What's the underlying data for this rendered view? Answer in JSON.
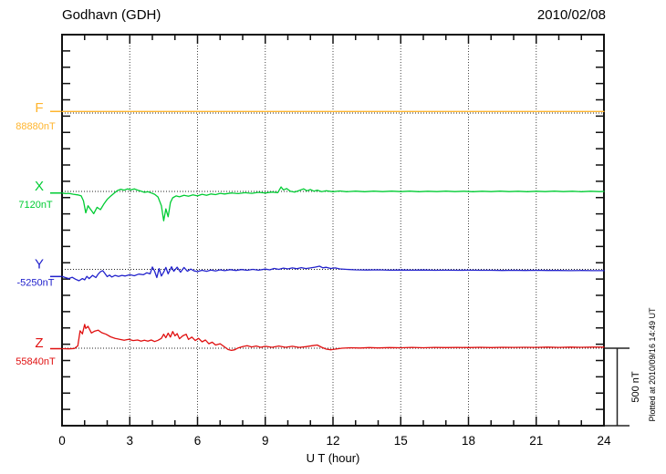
{
  "header": {
    "title": "Godhavn (GDH)",
    "date": "2010/02/08"
  },
  "chart_data": {
    "type": "line",
    "title": "Godhavn (GDH)",
    "date": "2010/02/08",
    "xlabel": "U T (hour)",
    "x_range": [
      0,
      24
    ],
    "x_major_ticks": [
      0,
      3,
      6,
      9,
      12,
      15,
      18,
      21,
      24
    ],
    "x_major_labels": [
      "0",
      "3",
      "6",
      "9",
      "12",
      "15",
      "18",
      "21",
      "24"
    ],
    "x_minor_step_hours": 1,
    "y_tick_step_nT": 100,
    "grid": {
      "vertical_dotted_at_hours": [
        3,
        6,
        9,
        12,
        15,
        18,
        21
      ],
      "horizontal_dotted": "one dotted baseline per channel"
    },
    "scale_bar": {
      "label": "500 nT",
      "value_nT": 500
    },
    "plotted_note": "Plotted at 2010/09/16 14:49 UT",
    "units_note": "points are [hour, deviation in nT from channel baseline]",
    "series": [
      {
        "name": "F",
        "baseline_label": "88880nT",
        "baseline_nT": 88880,
        "color": "#FFB52E",
        "points": [
          [
            0,
            10
          ],
          [
            24,
            10
          ]
        ]
      },
      {
        "name": "X",
        "baseline_label": "7120nT",
        "baseline_nT": 7120,
        "color": "#00CC33",
        "points": [
          [
            0,
            -10
          ],
          [
            0.15,
            -14
          ],
          [
            0.3,
            -12
          ],
          [
            0.5,
            -18
          ],
          [
            0.7,
            -22
          ],
          [
            0.85,
            -28
          ],
          [
            0.95,
            -60
          ],
          [
            1.05,
            -135
          ],
          [
            1.15,
            -90
          ],
          [
            1.25,
            -110
          ],
          [
            1.4,
            -140
          ],
          [
            1.55,
            -100
          ],
          [
            1.7,
            -115
          ],
          [
            1.85,
            -80
          ],
          [
            2,
            -50
          ],
          [
            2.15,
            -30
          ],
          [
            2.3,
            -12
          ],
          [
            2.45,
            5
          ],
          [
            2.6,
            14
          ],
          [
            2.75,
            8
          ],
          [
            2.9,
            16
          ],
          [
            3.05,
            10
          ],
          [
            3.2,
            16
          ],
          [
            3.35,
            8
          ],
          [
            3.5,
            2
          ],
          [
            3.65,
            -6
          ],
          [
            3.8,
            -2
          ],
          [
            3.95,
            -10
          ],
          [
            4.1,
            -18
          ],
          [
            4.25,
            -35
          ],
          [
            4.4,
            -90
          ],
          [
            4.5,
            -185
          ],
          [
            4.6,
            -110
          ],
          [
            4.7,
            -160
          ],
          [
            4.8,
            -70
          ],
          [
            4.9,
            -40
          ],
          [
            5.05,
            -28
          ],
          [
            5.2,
            -34
          ],
          [
            5.4,
            -24
          ],
          [
            5.6,
            -30
          ],
          [
            5.8,
            -22
          ],
          [
            6,
            -28
          ],
          [
            6.2,
            -18
          ],
          [
            6.4,
            -24
          ],
          [
            6.6,
            -16
          ],
          [
            6.8,
            -20
          ],
          [
            7,
            -12
          ],
          [
            7.2,
            -16
          ],
          [
            7.5,
            -10
          ],
          [
            7.8,
            -14
          ],
          [
            8.1,
            -8
          ],
          [
            8.4,
            -12
          ],
          [
            8.7,
            -6
          ],
          [
            9,
            -10
          ],
          [
            9.3,
            -4
          ],
          [
            9.55,
            -8
          ],
          [
            9.7,
            28
          ],
          [
            9.8,
            10
          ],
          [
            9.95,
            18
          ],
          [
            10.1,
            2
          ],
          [
            10.3,
            -4
          ],
          [
            10.5,
            6
          ],
          [
            10.7,
            16
          ],
          [
            10.85,
            4
          ],
          [
            11,
            12
          ],
          [
            11.15,
            2
          ],
          [
            11.3,
            8
          ],
          [
            11.5,
            -2
          ],
          [
            11.7,
            4
          ],
          [
            12,
            -2
          ],
          [
            12.3,
            3
          ],
          [
            12.6,
            -2
          ],
          [
            13,
            2
          ],
          [
            13.4,
            -2
          ],
          [
            13.8,
            2
          ],
          [
            14.2,
            -1
          ],
          [
            14.6,
            2
          ],
          [
            15,
            -1
          ],
          [
            15.4,
            2
          ],
          [
            15.8,
            -2
          ],
          [
            16.2,
            1
          ],
          [
            16.6,
            -1
          ],
          [
            17,
            2
          ],
          [
            17.4,
            -1
          ],
          [
            17.8,
            1
          ],
          [
            18.2,
            -2
          ],
          [
            18.6,
            1
          ],
          [
            19,
            -1
          ],
          [
            19.4,
            2
          ],
          [
            19.8,
            -1
          ],
          [
            20.2,
            1
          ],
          [
            20.6,
            -2
          ],
          [
            21,
            1
          ],
          [
            21.4,
            -1
          ],
          [
            21.8,
            2
          ],
          [
            22.2,
            -1
          ],
          [
            22.6,
            1
          ],
          [
            23,
            -2
          ],
          [
            23.4,
            1
          ],
          [
            23.8,
            -1
          ],
          [
            24,
            0
          ]
        ]
      },
      {
        "name": "Y",
        "baseline_label": "-5250nT",
        "baseline_nT": -5250,
        "color": "#2222CC",
        "points": [
          [
            0,
            -45
          ],
          [
            0.15,
            -52
          ],
          [
            0.3,
            -58
          ],
          [
            0.45,
            -50
          ],
          [
            0.6,
            -62
          ],
          [
            0.75,
            -72
          ],
          [
            0.9,
            -58
          ],
          [
            1,
            -66
          ],
          [
            1.1,
            -44
          ],
          [
            1.2,
            -58
          ],
          [
            1.35,
            -38
          ],
          [
            1.5,
            -52
          ],
          [
            1.6,
            -30
          ],
          [
            1.7,
            -15
          ],
          [
            1.8,
            -8
          ],
          [
            1.9,
            -26
          ],
          [
            2,
            -46
          ],
          [
            2.1,
            -36
          ],
          [
            2.2,
            -48
          ],
          [
            2.35,
            -38
          ],
          [
            2.5,
            -44
          ],
          [
            2.65,
            -38
          ],
          [
            2.8,
            -42
          ],
          [
            3,
            -34
          ],
          [
            3.2,
            -40
          ],
          [
            3.4,
            -30
          ],
          [
            3.6,
            -34
          ],
          [
            3.75,
            -22
          ],
          [
            3.9,
            -28
          ],
          [
            4,
            15
          ],
          [
            4.1,
            -12
          ],
          [
            4.2,
            -52
          ],
          [
            4.3,
            5
          ],
          [
            4.4,
            -42
          ],
          [
            4.5,
            -18
          ],
          [
            4.6,
            12
          ],
          [
            4.7,
            -28
          ],
          [
            4.85,
            16
          ],
          [
            4.95,
            -12
          ],
          [
            5.1,
            14
          ],
          [
            5.25,
            -18
          ],
          [
            5.4,
            12
          ],
          [
            5.55,
            -12
          ],
          [
            5.7,
            2
          ],
          [
            5.85,
            -10
          ],
          [
            6,
            -14
          ],
          [
            6.2,
            -6
          ],
          [
            6.4,
            -12
          ],
          [
            6.6,
            -4
          ],
          [
            6.8,
            -10
          ],
          [
            7,
            -3
          ],
          [
            7.2,
            -8
          ],
          [
            7.45,
            -2
          ],
          [
            7.7,
            -7
          ],
          [
            7.95,
            -1
          ],
          [
            8.2,
            -6
          ],
          [
            8.45,
            0
          ],
          [
            8.7,
            -5
          ],
          [
            9,
            2
          ],
          [
            9.2,
            -3
          ],
          [
            9.4,
            6
          ],
          [
            9.6,
            0
          ],
          [
            9.8,
            8
          ],
          [
            10,
            3
          ],
          [
            10.2,
            9
          ],
          [
            10.4,
            4
          ],
          [
            10.6,
            11
          ],
          [
            10.8,
            5
          ],
          [
            11,
            9
          ],
          [
            11.2,
            14
          ],
          [
            11.4,
            20
          ],
          [
            11.55,
            10
          ],
          [
            11.7,
            13
          ],
          [
            11.9,
            6
          ],
          [
            12.1,
            9
          ],
          [
            12.3,
            3
          ],
          [
            12.6,
            0
          ],
          [
            13,
            -3
          ],
          [
            13.5,
            -4
          ],
          [
            14,
            -3
          ],
          [
            14.5,
            -5
          ],
          [
            15,
            -4
          ],
          [
            15.5,
            -5
          ],
          [
            16,
            -4
          ],
          [
            16.5,
            -6
          ],
          [
            17,
            -5
          ],
          [
            17.5,
            -6
          ],
          [
            18,
            -5
          ],
          [
            18.5,
            -6
          ],
          [
            19,
            -6
          ],
          [
            19.5,
            -7
          ],
          [
            20,
            -6
          ],
          [
            20.5,
            -7
          ],
          [
            21,
            -6
          ],
          [
            21.5,
            -7
          ],
          [
            22,
            -7
          ],
          [
            22.5,
            -8
          ],
          [
            23,
            -7
          ],
          [
            23.5,
            -8
          ],
          [
            24,
            -8
          ]
        ]
      },
      {
        "name": "Z",
        "baseline_label": "55840nT",
        "baseline_nT": 55840,
        "color": "#E01010",
        "points": [
          [
            0,
            -3
          ],
          [
            0.3,
            -4
          ],
          [
            0.55,
            -2
          ],
          [
            0.7,
            15
          ],
          [
            0.8,
            110
          ],
          [
            0.9,
            90
          ],
          [
            1,
            150
          ],
          [
            1.05,
            125
          ],
          [
            1.15,
            138
          ],
          [
            1.3,
            96
          ],
          [
            1.45,
            108
          ],
          [
            1.6,
            114
          ],
          [
            1.75,
            98
          ],
          [
            1.95,
            88
          ],
          [
            2.15,
            72
          ],
          [
            2.35,
            62
          ],
          [
            2.55,
            56
          ],
          [
            2.75,
            50
          ],
          [
            2.95,
            56
          ],
          [
            3.15,
            48
          ],
          [
            3.35,
            52
          ],
          [
            3.5,
            44
          ],
          [
            3.65,
            50
          ],
          [
            3.8,
            44
          ],
          [
            3.95,
            52
          ],
          [
            4.1,
            42
          ],
          [
            4.25,
            50
          ],
          [
            4.4,
            62
          ],
          [
            4.5,
            88
          ],
          [
            4.6,
            66
          ],
          [
            4.7,
            95
          ],
          [
            4.8,
            70
          ],
          [
            4.9,
            105
          ],
          [
            5,
            78
          ],
          [
            5.1,
            92
          ],
          [
            5.2,
            60
          ],
          [
            5.35,
            78
          ],
          [
            5.5,
            88
          ],
          [
            5.6,
            55
          ],
          [
            5.75,
            70
          ],
          [
            5.9,
            48
          ],
          [
            6.05,
            62
          ],
          [
            6.2,
            40
          ],
          [
            6.35,
            52
          ],
          [
            6.5,
            28
          ],
          [
            6.65,
            38
          ],
          [
            6.8,
            20
          ],
          [
            7,
            28
          ],
          [
            7.2,
            8
          ],
          [
            7.35,
            -8
          ],
          [
            7.5,
            -14
          ],
          [
            7.65,
            -10
          ],
          [
            7.8,
            2
          ],
          [
            8,
            10
          ],
          [
            8.2,
            16
          ],
          [
            8.4,
            8
          ],
          [
            8.6,
            14
          ],
          [
            8.8,
            6
          ],
          [
            9,
            12
          ],
          [
            9.3,
            6
          ],
          [
            9.6,
            14
          ],
          [
            9.9,
            6
          ],
          [
            10.2,
            12
          ],
          [
            10.5,
            5
          ],
          [
            10.8,
            10
          ],
          [
            11.1,
            16
          ],
          [
            11.3,
            20
          ],
          [
            11.5,
            6
          ],
          [
            11.7,
            -6
          ],
          [
            11.9,
            -10
          ],
          [
            12.1,
            -6
          ],
          [
            12.4,
            0
          ],
          [
            12.8,
            3
          ],
          [
            13.2,
            1
          ],
          [
            13.6,
            4
          ],
          [
            14,
            2
          ],
          [
            14.5,
            4
          ],
          [
            15,
            3
          ],
          [
            15.5,
            5
          ],
          [
            16,
            3
          ],
          [
            16.5,
            5
          ],
          [
            17,
            4
          ],
          [
            17.5,
            5
          ],
          [
            18,
            4
          ],
          [
            18.5,
            6
          ],
          [
            19,
            4
          ],
          [
            19.5,
            6
          ],
          [
            20,
            5
          ],
          [
            20.5,
            6
          ],
          [
            21,
            5
          ],
          [
            21.5,
            7
          ],
          [
            22,
            5
          ],
          [
            22.5,
            7
          ],
          [
            23,
            6
          ],
          [
            23.5,
            7
          ],
          [
            24,
            7
          ]
        ]
      }
    ]
  }
}
